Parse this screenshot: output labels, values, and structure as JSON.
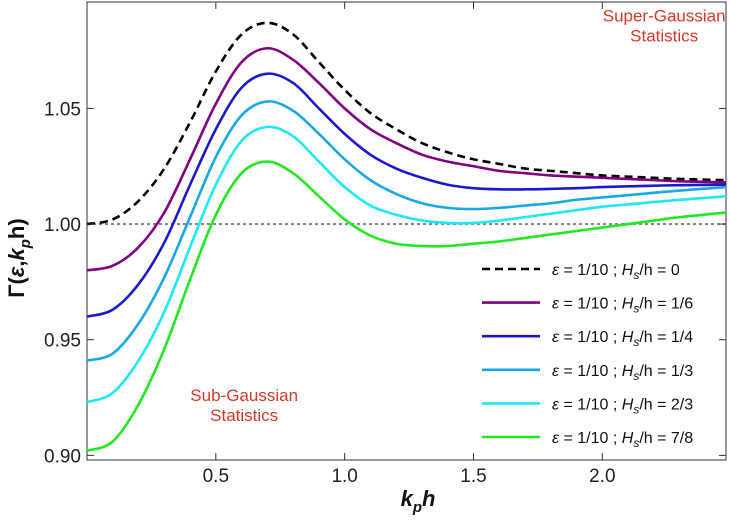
{
  "chart_data": {
    "type": "line",
    "title": "",
    "xlabel": {
      "main": "k",
      "sub": "p",
      "tail": "h"
    },
    "ylabel": {
      "pre": "Γ(",
      "eps": "ε",
      "mid": ",",
      "k": "k",
      "sub": "p",
      "tail": "h)"
    },
    "xlim": [
      0,
      2.48
    ],
    "ylim": [
      0.898,
      1.096
    ],
    "xticks": [
      {
        "value": 0.5,
        "label": "0.5"
      },
      {
        "value": 1.0,
        "label": "1.0"
      },
      {
        "value": 1.5,
        "label": "1.5"
      },
      {
        "value": 2.0,
        "label": "2.0"
      }
    ],
    "yticks": [
      {
        "value": 0.9,
        "label": "0.90"
      },
      {
        "value": 0.95,
        "label": "0.95"
      },
      {
        "value": 1.0,
        "label": "1.00"
      },
      {
        "value": 1.05,
        "label": "1.05"
      }
    ],
    "reference_line": {
      "y": 1.0,
      "color": "#888888"
    },
    "annotations": [
      {
        "id": "super",
        "lines": [
          "Super-Gaussian",
          "Statistics"
        ],
        "x": 2.24,
        "y": 1.0875,
        "color": "#d23a2a"
      },
      {
        "id": "sub",
        "lines": [
          "Sub-Gaussian",
          "Statistics"
        ],
        "x": 0.61,
        "y": 0.9235,
        "color": "#d23a2a"
      }
    ],
    "legend_position": "bottom-right",
    "legend_label_parts": {
      "eps": "ε",
      "eq": " = 1/10 ; ",
      "h": "H",
      "hsub": "s",
      "tail": "/h = "
    },
    "series": [
      {
        "name": "ε = 1/10 ; Hs/h = 0",
        "hs_ratio": "0",
        "color": "#000000",
        "dashed": true,
        "x": [
          0,
          0.1,
          0.2,
          0.3,
          0.4,
          0.5,
          0.6,
          0.7,
          0.8,
          0.9,
          1.0,
          1.1,
          1.2,
          1.3,
          1.4,
          1.5,
          1.6,
          1.7,
          1.8,
          1.9,
          2.0,
          2.1,
          2.2,
          2.3,
          2.48
        ],
        "y": [
          1.0,
          1.002,
          1.01,
          1.024,
          1.044,
          1.066,
          1.082,
          1.087,
          1.082,
          1.07,
          1.058,
          1.048,
          1.041,
          1.035,
          1.031,
          1.028,
          1.026,
          1.024,
          1.023,
          1.022,
          1.021,
          1.0205,
          1.02,
          1.0195,
          1.019
        ]
      },
      {
        "name": "ε = 1/10 ; Hs/h = 1/6",
        "hs_ratio": "1/6",
        "color": "#800080",
        "dashed": false,
        "x": [
          0,
          0.1,
          0.2,
          0.3,
          0.4,
          0.5,
          0.6,
          0.7,
          0.8,
          0.9,
          1.0,
          1.1,
          1.2,
          1.3,
          1.4,
          1.5,
          1.6,
          1.7,
          1.8,
          1.9,
          2.0,
          2.1,
          2.2,
          2.3,
          2.48
        ],
        "y": [
          0.98,
          0.982,
          0.99,
          1.005,
          1.028,
          1.052,
          1.07,
          1.076,
          1.071,
          1.061,
          1.05,
          1.041,
          1.035,
          1.03,
          1.027,
          1.025,
          1.023,
          1.022,
          1.021,
          1.0205,
          1.02,
          1.0195,
          1.019,
          1.0185,
          1.018
        ]
      },
      {
        "name": "ε = 1/10 ; Hs/h = 1/4",
        "hs_ratio": "1/4",
        "color": "#1a1acc",
        "dashed": false,
        "x": [
          0,
          0.1,
          0.2,
          0.3,
          0.4,
          0.5,
          0.6,
          0.7,
          0.8,
          0.9,
          1.0,
          1.1,
          1.2,
          1.3,
          1.4,
          1.5,
          1.6,
          1.7,
          1.8,
          1.9,
          2.0,
          2.1,
          2.2,
          2.3,
          2.48
        ],
        "y": [
          0.96,
          0.963,
          0.974,
          0.992,
          1.017,
          1.041,
          1.059,
          1.065,
          1.061,
          1.05,
          1.039,
          1.03,
          1.024,
          1.02,
          1.017,
          1.0155,
          1.015,
          1.015,
          1.0152,
          1.0155,
          1.016,
          1.0163,
          1.0166,
          1.0168,
          1.017
        ]
      },
      {
        "name": "ε = 1/10 ; Hs/h = 1/3",
        "hs_ratio": "1/3",
        "color": "#1aa7e6",
        "dashed": false,
        "x": [
          0,
          0.1,
          0.2,
          0.3,
          0.4,
          0.5,
          0.6,
          0.7,
          0.8,
          0.9,
          1.0,
          1.1,
          1.2,
          1.3,
          1.4,
          1.5,
          1.6,
          1.7,
          1.8,
          1.9,
          2.0,
          2.1,
          2.2,
          2.3,
          2.48
        ],
        "y": [
          0.941,
          0.944,
          0.957,
          0.977,
          1.003,
          1.029,
          1.047,
          1.053,
          1.049,
          1.039,
          1.028,
          1.019,
          1.013,
          1.009,
          1.007,
          1.0065,
          1.007,
          1.008,
          1.009,
          1.0105,
          1.0115,
          1.0125,
          1.0135,
          1.0145,
          1.016
        ]
      },
      {
        "name": "ε = 1/10 ; Hs/h = 2/3",
        "hs_ratio": "2/3",
        "color": "#1fe8f4",
        "dashed": false,
        "x": [
          0,
          0.1,
          0.2,
          0.3,
          0.4,
          0.5,
          0.6,
          0.7,
          0.8,
          0.9,
          1.0,
          1.1,
          1.2,
          1.3,
          1.4,
          1.5,
          1.6,
          1.7,
          1.8,
          1.9,
          2.0,
          2.1,
          2.2,
          2.3,
          2.48
        ],
        "y": [
          0.923,
          0.927,
          0.941,
          0.962,
          0.99,
          1.017,
          1.036,
          1.042,
          1.038,
          1.027,
          1.016,
          1.008,
          1.004,
          1.0015,
          1.0005,
          1.0005,
          1.0015,
          1.003,
          1.0045,
          1.006,
          1.0075,
          1.0085,
          1.0095,
          1.0105,
          1.012
        ]
      },
      {
        "name": "ε = 1/10 ; Hs/h = 7/8",
        "hs_ratio": "7/8",
        "color": "#22e822",
        "dashed": false,
        "x": [
          0,
          0.1,
          0.2,
          0.3,
          0.4,
          0.5,
          0.6,
          0.7,
          0.8,
          0.9,
          1.0,
          1.1,
          1.2,
          1.3,
          1.4,
          1.5,
          1.6,
          1.7,
          1.8,
          1.9,
          2.0,
          2.1,
          2.2,
          2.3,
          2.48
        ],
        "y": [
          0.902,
          0.906,
          0.922,
          0.946,
          0.976,
          1.004,
          1.022,
          1.027,
          1.022,
          1.012,
          1.002,
          0.995,
          0.9915,
          0.9905,
          0.9905,
          0.9915,
          0.9925,
          0.994,
          0.9955,
          0.997,
          0.9985,
          1.0,
          1.0015,
          1.003,
          1.005
        ]
      }
    ]
  }
}
